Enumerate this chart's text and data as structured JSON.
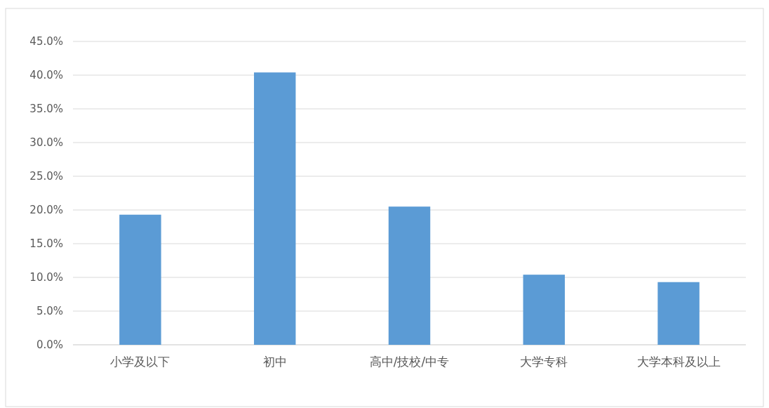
{
  "chart_data": {
    "type": "bar",
    "categories": [
      "小学及以下",
      "初中",
      "高中/技校/中专",
      "大学专科",
      "大学本科及以上"
    ],
    "values": [
      19.3,
      40.4,
      20.5,
      10.4,
      9.3
    ],
    "color": "#5b9bd5",
    "ylim": [
      0,
      45
    ],
    "yticks": [
      {
        "value": 0,
        "label": "0.0%"
      },
      {
        "value": 5,
        "label": "5.0%"
      },
      {
        "value": 10,
        "label": "10.0%"
      },
      {
        "value": 15,
        "label": "15.0%"
      },
      {
        "value": 20,
        "label": "20.0%"
      },
      {
        "value": 25,
        "label": "25.0%"
      },
      {
        "value": 30,
        "label": "30.0%"
      },
      {
        "value": 35,
        "label": "35.0%"
      },
      {
        "value": 40,
        "label": "40.0%"
      },
      {
        "value": 45,
        "label": "45.0%"
      }
    ],
    "grid": "y"
  }
}
